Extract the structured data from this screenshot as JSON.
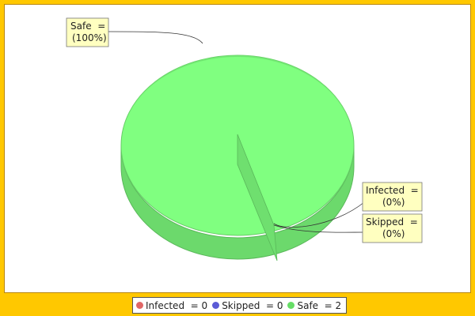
{
  "chart_data": {
    "type": "pie",
    "style": "3d",
    "title": "",
    "slices": [
      {
        "label": "Infected",
        "value": 0,
        "percent": "(0%)",
        "color": "#e06666"
      },
      {
        "label": "Skipped",
        "value": 0,
        "percent": "(0%)",
        "color": "#5b5bd6"
      },
      {
        "label": "Safe",
        "value": 2,
        "percent": "(100%)",
        "color": "#80ff80"
      }
    ],
    "labels": {
      "safe": {
        "name": "Safe  =",
        "pct": "(100%)"
      },
      "infected": {
        "name": "Infected  =",
        "pct": "(0%)"
      },
      "skipped": {
        "name": "Skipped  =",
        "pct": "(0%)"
      }
    },
    "legend": [
      {
        "text": "Infected  = 0",
        "color": "#e06666"
      },
      {
        "text": "Skipped  = 0",
        "color": "#5b5bd6"
      },
      {
        "text": "Safe  = 2",
        "color": "#66dd66"
      }
    ],
    "legend_position": "bottom"
  },
  "colors": {
    "background": "#ffc800",
    "label_box": "#ffffc0"
  }
}
